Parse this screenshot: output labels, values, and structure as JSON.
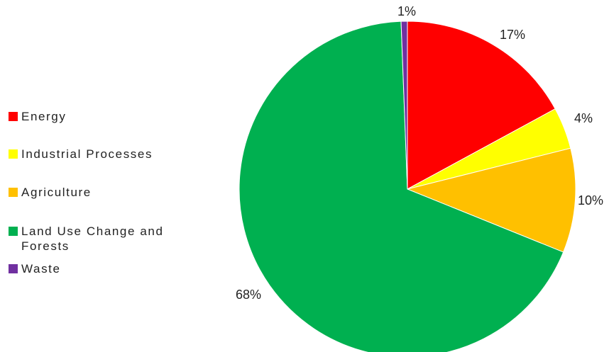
{
  "chart_data": {
    "type": "pie",
    "title": "",
    "legend_position": "left",
    "slices": [
      {
        "name": "Energy",
        "value": 17,
        "label": "17%",
        "color": "#ff0000"
      },
      {
        "name": "Industrial Processes",
        "value": 4,
        "label": "4%",
        "color": "#ffff00"
      },
      {
        "name": "Agriculture",
        "value": 10,
        "label": "10%",
        "color": "#ffc000"
      },
      {
        "name": "Land Use Change and Forests",
        "value": 68,
        "label": "68%",
        "color": "#00b050"
      },
      {
        "name": "Waste",
        "value": 0.6,
        "label": "1%",
        "color": "#7030a0"
      }
    ]
  }
}
